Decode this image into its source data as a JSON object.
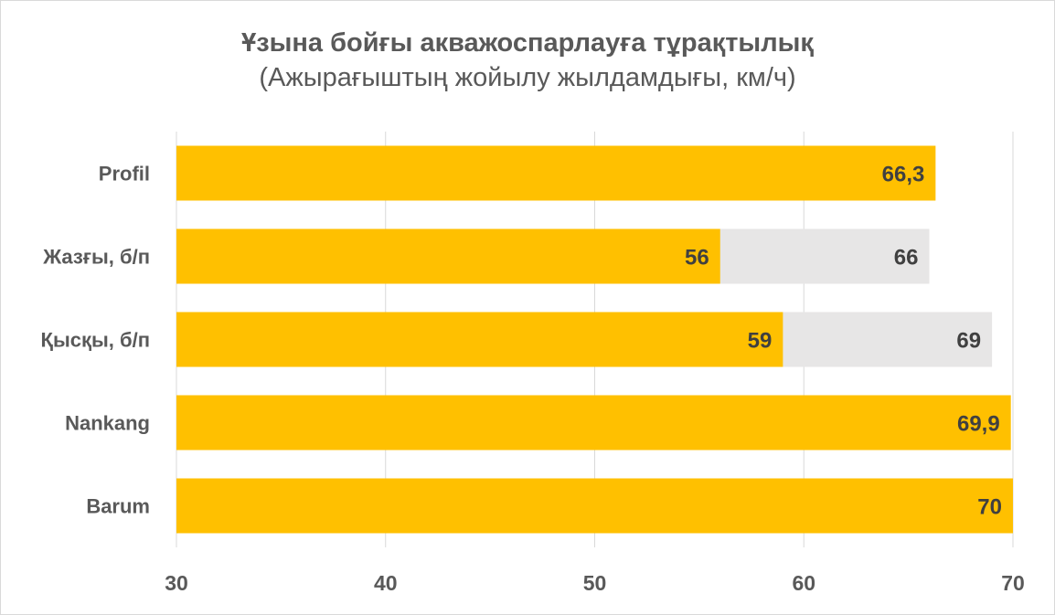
{
  "chart_data": {
    "type": "bar",
    "orientation": "horizontal",
    "title": "Ұзына бойғы акважоспарлауға тұрақтылық",
    "subtitle": "(Ажырағыштың жойылу жылдамдығы, км/ч)",
    "categories": [
      "Profil",
      "Жазғы, б/п",
      "Қысқы, б/п",
      "Nankang",
      "Barum"
    ],
    "series": [
      {
        "values": [
          66.3,
          56,
          59,
          69.9,
          70
        ],
        "labels": [
          "66,3",
          "56",
          "59",
          "69,9",
          "70"
        ],
        "color": "#FFC000"
      },
      {
        "values": [
          null,
          66,
          69,
          null,
          null
        ],
        "labels": [
          null,
          "66",
          "69",
          null,
          null
        ],
        "color": "#E7E6E6"
      }
    ],
    "xlim": [
      30,
      70
    ],
    "xticks": [
      30,
      40,
      50,
      60,
      70
    ],
    "xtick_labels": [
      "30",
      "40",
      "50",
      "60",
      "70"
    ],
    "grid": true,
    "legend": "none"
  },
  "colors": {
    "text": "#595959",
    "grid": "#d9d9d9",
    "label": "#404040"
  }
}
